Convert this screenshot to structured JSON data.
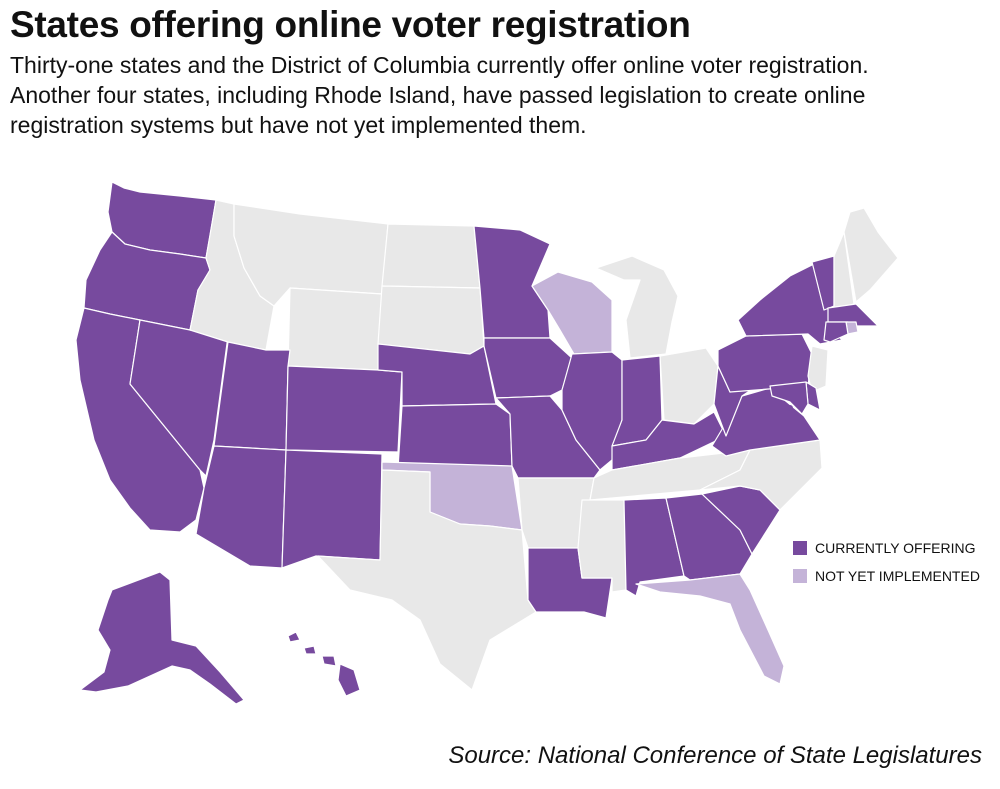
{
  "title": "States offering online voter registration",
  "description": [
    "Thirty-one states and the District of Columbia currently offer online voter registration.",
    "Another four states, including Rhode Island, have passed legislation to create online",
    "registration systems but have not yet implemented them."
  ],
  "legend": {
    "offering_label": "CURRENTLY OFFERING",
    "not_yet_label": "NOT YET IMPLEMENTED"
  },
  "source": "Source: National Conference of State Legislatures",
  "colors": {
    "offering": "#774a9e",
    "not_yet": "#c4b3d8",
    "none": "#e8e8e8",
    "border": "#ffffff"
  },
  "states": {
    "WA": "offering",
    "OR": "offering",
    "CA": "offering",
    "NV": "offering",
    "ID": "none",
    "MT": "none",
    "WY": "none",
    "UT": "offering",
    "AZ": "offering",
    "CO": "offering",
    "NM": "offering",
    "ND": "none",
    "SD": "none",
    "NE": "offering",
    "KS": "offering",
    "OK": "not_yet",
    "TX": "none",
    "MN": "offering",
    "IA": "offering",
    "MO": "offering",
    "AR": "none",
    "LA": "offering",
    "WI": "not_yet",
    "IL": "offering",
    "MI": "none",
    "IN": "offering",
    "OH": "none",
    "KY": "offering",
    "TN": "none",
    "MS": "none",
    "AL": "offering",
    "GA": "offering",
    "FL": "not_yet",
    "SC": "offering",
    "NC": "none",
    "VA": "offering",
    "WV": "offering",
    "PA": "offering",
    "NY": "offering",
    "VT": "offering",
    "NH": "none",
    "ME": "none",
    "MA": "offering",
    "RI": "not_yet",
    "CT": "offering",
    "NJ": "none",
    "DE": "offering",
    "MD": "offering",
    "DC": "offering",
    "AK": "offering",
    "HI": "offering"
  }
}
